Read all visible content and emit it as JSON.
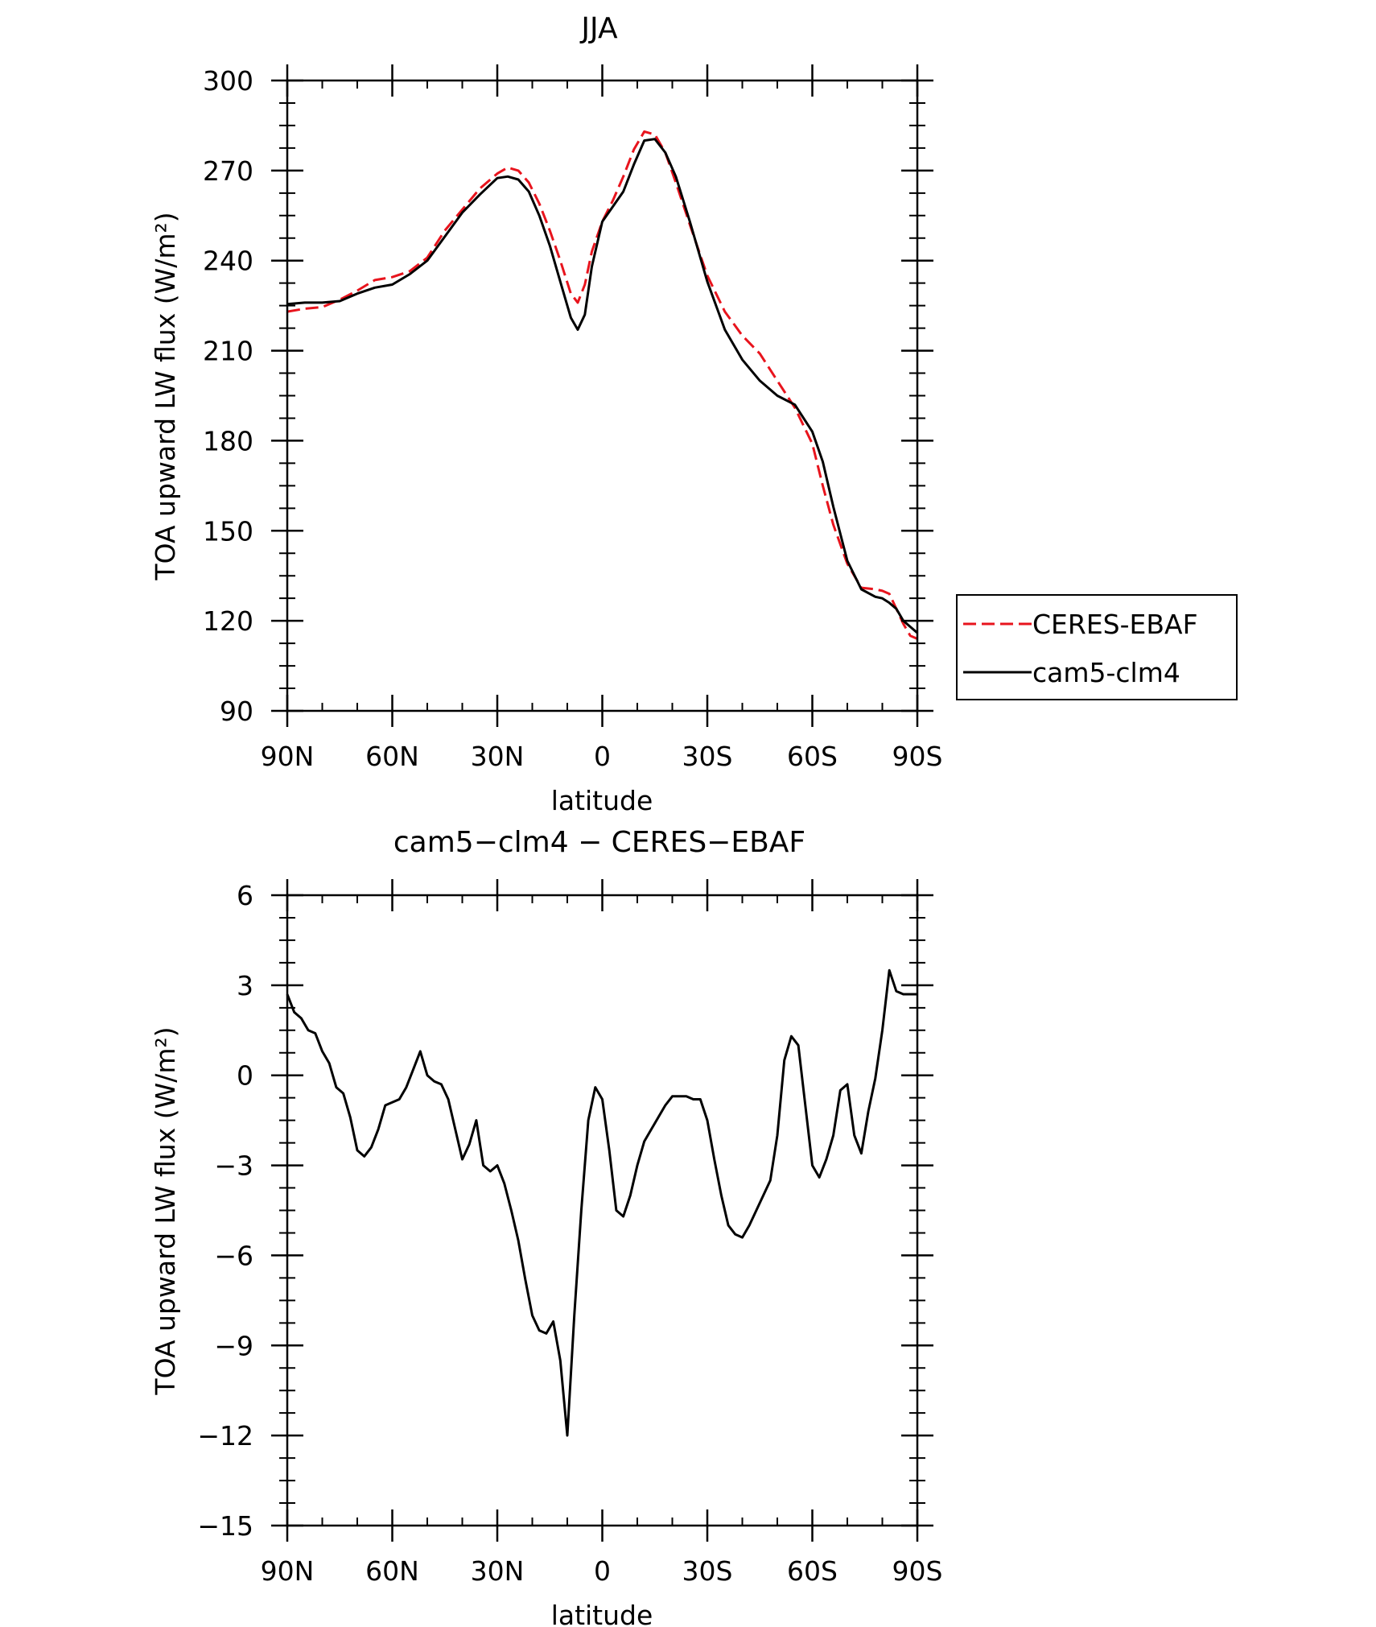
{
  "chart_data": [
    {
      "type": "line",
      "title": "JJA",
      "xlabel": "latitude",
      "ylabel": "TOA upward LW flux (W/m²)",
      "xlim": [
        90,
        -90
      ],
      "ylim": [
        90,
        300
      ],
      "xticks": [
        {
          "value": 90,
          "label": "90N"
        },
        {
          "value": 60,
          "label": "60N"
        },
        {
          "value": 30,
          "label": "30N"
        },
        {
          "value": 0,
          "label": "0"
        },
        {
          "value": -30,
          "label": "30S"
        },
        {
          "value": -60,
          "label": "60S"
        },
        {
          "value": -90,
          "label": "90S"
        }
      ],
      "yticks": [
        {
          "value": 300,
          "label": "300"
        },
        {
          "value": 270,
          "label": "270"
        },
        {
          "value": 240,
          "label": "240"
        },
        {
          "value": 210,
          "label": "210"
        },
        {
          "value": 180,
          "label": "180"
        },
        {
          "value": 150,
          "label": "150"
        },
        {
          "value": 120,
          "label": "120"
        },
        {
          "value": 90,
          "label": "90"
        }
      ],
      "legend": "outside-right",
      "series": [
        {
          "name": "CERES-EBAF",
          "color": "#e8141d",
          "dash": true,
          "x": [
            90,
            85,
            80,
            75,
            70,
            65,
            60,
            55,
            50,
            45,
            40,
            35,
            30,
            27,
            24,
            21,
            18,
            15,
            12,
            9,
            7,
            5,
            3,
            0,
            -3,
            -6,
            -9,
            -12,
            -15,
            -18,
            -21,
            -25,
            -30,
            -35,
            -40,
            -45,
            -50,
            -55,
            -60,
            -63,
            -66,
            -70,
            -74,
            -78,
            -80,
            -82,
            -84,
            -86,
            -88,
            -90
          ],
          "y": [
            223,
            224,
            224.5,
            227,
            230,
            233.5,
            234.5,
            236.5,
            241,
            250,
            257,
            264,
            269,
            271,
            270,
            266,
            259,
            250,
            240,
            229,
            226,
            232,
            243,
            253,
            260,
            268,
            277,
            283,
            282,
            276,
            266,
            252,
            235,
            223,
            215,
            209,
            200,
            191,
            179,
            165,
            152,
            139,
            131,
            130.5,
            130,
            129,
            124,
            119,
            115,
            114
          ]
        },
        {
          "name": "cam5-clm4",
          "color": "#000000",
          "dash": false,
          "x": [
            90,
            85,
            80,
            75,
            70,
            65,
            60,
            55,
            50,
            45,
            40,
            35,
            30,
            27,
            24,
            21,
            18,
            15,
            12,
            9,
            7,
            5,
            3,
            0,
            -3,
            -6,
            -9,
            -12,
            -15,
            -18,
            -21,
            -25,
            -30,
            -35,
            -40,
            -45,
            -50,
            -55,
            -60,
            -63,
            -66,
            -70,
            -74,
            -78,
            -80,
            -82,
            -84,
            -86,
            -88,
            -90
          ],
          "y": [
            225.5,
            226,
            226,
            226.5,
            229,
            231,
            232,
            235.5,
            240,
            248,
            256,
            262,
            267.5,
            268,
            267,
            263,
            255,
            245,
            233,
            221,
            217,
            222,
            238,
            253,
            258,
            263,
            272,
            280,
            280.5,
            276,
            268,
            253,
            233,
            217,
            207,
            200,
            195,
            192,
            183,
            173,
            158,
            140,
            130.5,
            128,
            127.5,
            126,
            124,
            120,
            118,
            116
          ]
        }
      ]
    },
    {
      "type": "line",
      "title": "cam5−clm4 − CERES−EBAF",
      "xlabel": "latitude",
      "ylabel": "TOA upward LW flux (W/m²)",
      "xlim": [
        90,
        -90
      ],
      "ylim": [
        -15,
        6
      ],
      "xticks": [
        {
          "value": 90,
          "label": "90N"
        },
        {
          "value": 60,
          "label": "60N"
        },
        {
          "value": 30,
          "label": "30N"
        },
        {
          "value": 0,
          "label": "0"
        },
        {
          "value": -30,
          "label": "30S"
        },
        {
          "value": -60,
          "label": "60S"
        },
        {
          "value": -90,
          "label": "90S"
        }
      ],
      "yticks": [
        {
          "value": 6,
          "label": "6"
        },
        {
          "value": 3,
          "label": "3"
        },
        {
          "value": 0,
          "label": "0"
        },
        {
          "value": -3,
          "label": "−3"
        },
        {
          "value": -6,
          "label": "−6"
        },
        {
          "value": -9,
          "label": "−9"
        },
        {
          "value": -12,
          "label": "−12"
        },
        {
          "value": -15,
          "label": "−15"
        }
      ],
      "series": [
        {
          "color": "#000000",
          "dash": false,
          "x": [
            90,
            88,
            86,
            84,
            82,
            80,
            78,
            76,
            74,
            72,
            70,
            68,
            66,
            64,
            62,
            60,
            58,
            56,
            54,
            52,
            50,
            48,
            46,
            44,
            42,
            40,
            38,
            36,
            34,
            32,
            30,
            28,
            26,
            24,
            22,
            20,
            18,
            16,
            14,
            12,
            10,
            8,
            6,
            4,
            2,
            0,
            -2,
            -4,
            -6,
            -8,
            -10,
            -12,
            -14,
            -16,
            -18,
            -20,
            -22,
            -24,
            -26,
            -28,
            -30,
            -32,
            -34,
            -36,
            -38,
            -40,
            -42,
            -44,
            -46,
            -48,
            -50,
            -52,
            -54,
            -56,
            -58,
            -60,
            -62,
            -64,
            -66,
            -68,
            -70,
            -72,
            -74,
            -76,
            -78,
            -80,
            -82,
            -84,
            -86,
            -88,
            -90
          ],
          "y": [
            2.7,
            2.1,
            1.9,
            1.5,
            1.4,
            0.8,
            0.4,
            -0.4,
            -0.6,
            -1.4,
            -2.5,
            -2.7,
            -2.4,
            -1.8,
            -1.0,
            -0.9,
            -0.8,
            -0.4,
            0.2,
            0.8,
            0.0,
            -0.2,
            -0.3,
            -0.8,
            -1.8,
            -2.8,
            -2.3,
            -1.5,
            -3.0,
            -3.2,
            -3.0,
            -3.6,
            -4.5,
            -5.5,
            -6.8,
            -8.0,
            -8.5,
            -8.6,
            -8.2,
            -9.5,
            -12.0,
            -8.0,
            -4.5,
            -1.5,
            -0.4,
            -0.8,
            -2.5,
            -4.5,
            -4.7,
            -4.0,
            -3.0,
            -2.2,
            -1.8,
            -1.4,
            -1.0,
            -0.7,
            -0.7,
            -0.7,
            -0.8,
            -0.8,
            -1.5,
            -2.8,
            -4.0,
            -5.0,
            -5.3,
            -5.4,
            -5.0,
            -4.5,
            -4.0,
            -3.5,
            -2.0,
            0.5,
            1.3,
            1.0,
            -1.0,
            -3.0,
            -3.4,
            -2.8,
            -2.0,
            -0.5,
            -0.3,
            -2.0,
            -2.6,
            -1.2,
            -0.1,
            1.5,
            3.5,
            2.8,
            2.7,
            2.7,
            2.7
          ]
        }
      ]
    }
  ]
}
